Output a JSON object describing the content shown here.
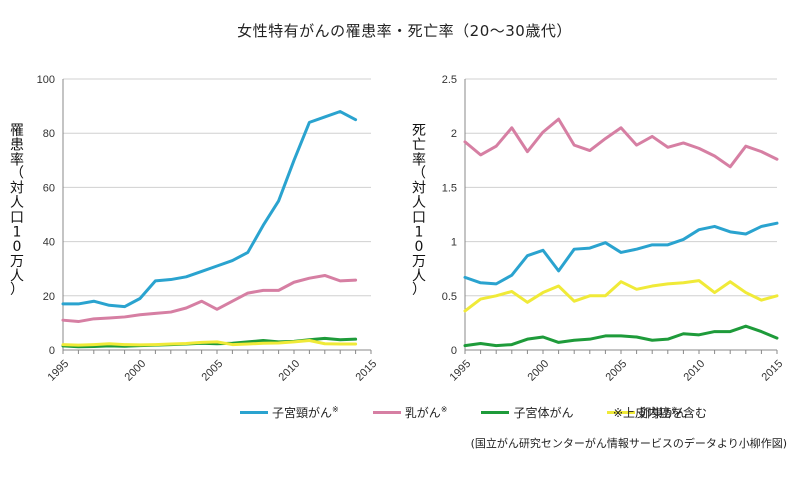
{
  "title": "女性特有がんの罹患率・死亡率（20～30歳代）",
  "chart_data": [
    {
      "type": "line",
      "ylabel": "罹患率（対人口10万人）",
      "ylim": [
        0,
        100
      ],
      "yticks": [
        "0",
        "20",
        "40",
        "60",
        "80",
        "100"
      ],
      "xlim": [
        1995,
        2015
      ],
      "xticks": [
        "1995",
        "2000",
        "2005",
        "2010",
        "2015"
      ],
      "x": [
        1995,
        1996,
        1997,
        1998,
        1999,
        2000,
        2001,
        2002,
        2003,
        2004,
        2005,
        2006,
        2007,
        2008,
        2009,
        2010,
        2011,
        2012,
        2013,
        2014
      ],
      "series": [
        {
          "name": "子宮頸がん",
          "color": "#2aa3cf",
          "values": [
            17,
            17,
            18,
            16.5,
            16,
            19,
            25.5,
            26,
            27,
            29,
            31,
            33,
            36,
            46,
            55,
            70,
            84,
            86,
            88,
            85
          ]
        },
        {
          "name": "乳がん",
          "color": "#d67fa3",
          "values": [
            11,
            10.5,
            11.5,
            11.8,
            12.2,
            13,
            13.5,
            14,
            15.5,
            18,
            15,
            18,
            21,
            22,
            22,
            25,
            26.5,
            27.5,
            25.5,
            25.8
          ]
        },
        {
          "name": "子宮体がん",
          "color": "#1e9b3a",
          "values": [
            1.5,
            1.2,
            1.3,
            1.5,
            1.4,
            1.6,
            1.8,
            2,
            2.2,
            2.5,
            2.3,
            2.5,
            3,
            3.5,
            3,
            3.2,
            3.8,
            4.3,
            3.8,
            4
          ]
        },
        {
          "name": "卵巣がん",
          "color": "#f0ea38",
          "values": [
            2,
            1.8,
            2,
            2.3,
            2,
            1.9,
            2,
            2.2,
            2.4,
            2.8,
            3,
            2,
            2.2,
            2.5,
            2.6,
            3,
            3.5,
            2.3,
            2.2,
            2.2
          ]
        }
      ]
    },
    {
      "type": "line",
      "ylabel": "死亡率（対人口10万人）",
      "ylim": [
        0,
        2.5
      ],
      "yticks": [
        "0",
        "0.5",
        "1",
        "1.5",
        "2",
        "2.5"
      ],
      "xlim": [
        1995,
        2015
      ],
      "xticks": [
        "1995",
        "2000",
        "2005",
        "2010",
        "2015"
      ],
      "x": [
        1995,
        1996,
        1997,
        1998,
        1999,
        2000,
        2001,
        2002,
        2003,
        2004,
        2005,
        2006,
        2007,
        2008,
        2009,
        2010,
        2011,
        2012,
        2013,
        2014,
        2015
      ],
      "series": [
        {
          "name": "子宮頸がん",
          "color": "#2aa3cf",
          "values": [
            0.67,
            0.62,
            0.61,
            0.69,
            0.87,
            0.92,
            0.73,
            0.93,
            0.94,
            0.99,
            0.9,
            0.93,
            0.97,
            0.97,
            1.02,
            1.11,
            1.14,
            1.09,
            1.07,
            1.14,
            1.17
          ]
        },
        {
          "name": "乳がん",
          "color": "#d67fa3",
          "values": [
            1.92,
            1.8,
            1.88,
            2.05,
            1.83,
            2.01,
            2.13,
            1.89,
            1.84,
            1.95,
            2.05,
            1.89,
            1.97,
            1.87,
            1.91,
            1.86,
            1.79,
            1.69,
            1.88,
            1.83,
            1.76
          ]
        },
        {
          "name": "子宮体がん",
          "color": "#1e9b3a",
          "values": [
            0.04,
            0.06,
            0.04,
            0.05,
            0.1,
            0.12,
            0.07,
            0.09,
            0.1,
            0.13,
            0.13,
            0.12,
            0.09,
            0.1,
            0.15,
            0.14,
            0.17,
            0.17,
            0.22,
            0.17,
            0.11
          ]
        },
        {
          "name": "卵巣がん",
          "color": "#f0ea38",
          "values": [
            0.36,
            0.47,
            0.5,
            0.54,
            0.44,
            0.53,
            0.59,
            0.45,
            0.5,
            0.5,
            0.63,
            0.56,
            0.59,
            0.61,
            0.62,
            0.64,
            0.53,
            0.63,
            0.53,
            0.46,
            0.5
          ]
        }
      ]
    }
  ],
  "legend": [
    {
      "label": "子宮頸がん",
      "mark": "※",
      "color": "#2aa3cf"
    },
    {
      "label": "乳がん",
      "mark": "※",
      "color": "#d67fa3"
    },
    {
      "label": "子宮体がん",
      "mark": "",
      "color": "#1e9b3a"
    },
    {
      "label": "卵巣がん",
      "mark": "",
      "color": "#f0ea38"
    }
  ],
  "note": "※上皮内癌を含む",
  "source": "(国立がん研究センターがん情報サービスのデータより小柳作図)"
}
